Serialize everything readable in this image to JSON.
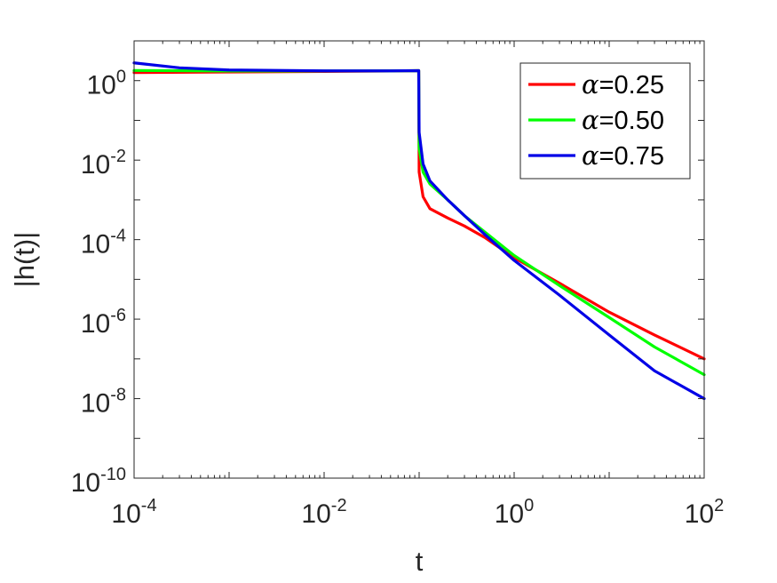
{
  "chart_data": {
    "type": "line",
    "title": "",
    "xlabel": "t",
    "ylabel": "|h(t)|",
    "xscale": "log",
    "yscale": "log",
    "xlim": [
      0.0001,
      100
    ],
    "ylim": [
      1e-10,
      10
    ],
    "grid": false,
    "legend_position": "top-right",
    "xticks": [
      {
        "value": 0.0001,
        "base": "10",
        "exp": "-4"
      },
      {
        "value": 0.01,
        "base": "10",
        "exp": "-2"
      },
      {
        "value": 1,
        "base": "10",
        "exp": "0"
      },
      {
        "value": 100,
        "base": "10",
        "exp": "2"
      }
    ],
    "yticks": [
      {
        "value": 1,
        "base": "10",
        "exp": "0"
      },
      {
        "value": 0.01,
        "base": "10",
        "exp": "-2"
      },
      {
        "value": 0.0001,
        "base": "10",
        "exp": "-4"
      },
      {
        "value": 1e-06,
        "base": "10",
        "exp": "-6"
      },
      {
        "value": 1e-08,
        "base": "10",
        "exp": "-8"
      },
      {
        "value": 1e-10,
        "base": "10",
        "exp": "-10"
      }
    ],
    "series": [
      {
        "name": "α=0.25",
        "legend_symbol": "α",
        "legend_value": "=0.25",
        "color": "#ff0000",
        "points": [
          [
            0.0001,
            1.6
          ],
          [
            0.001,
            1.65
          ],
          [
            0.01,
            1.7
          ],
          [
            0.05,
            1.75
          ],
          [
            0.099,
            1.78
          ],
          [
            0.1,
            0.005
          ],
          [
            0.11,
            0.0012
          ],
          [
            0.13,
            0.0006
          ],
          [
            0.2,
            0.00035
          ],
          [
            0.3,
            0.00022
          ],
          [
            0.5,
            0.00011
          ],
          [
            1,
            3.5e-05
          ],
          [
            3,
            8e-06
          ],
          [
            10,
            1.5e-06
          ],
          [
            30,
            4e-07
          ],
          [
            100,
            1e-07
          ]
        ]
      },
      {
        "name": "α=0.50",
        "legend_symbol": "α",
        "legend_value": "=0.50",
        "color": "#00ff00",
        "points": [
          [
            0.0001,
            1.8
          ],
          [
            0.001,
            1.75
          ],
          [
            0.01,
            1.75
          ],
          [
            0.05,
            1.76
          ],
          [
            0.099,
            1.78
          ],
          [
            0.1,
            0.02
          ],
          [
            0.11,
            0.005
          ],
          [
            0.13,
            0.0025
          ],
          [
            0.2,
            0.001
          ],
          [
            0.3,
            0.0004
          ],
          [
            0.5,
            0.00015
          ],
          [
            1,
            4e-05
          ],
          [
            3,
            7e-06
          ],
          [
            10,
            1.1e-06
          ],
          [
            30,
            2e-07
          ],
          [
            100,
            4e-08
          ]
        ]
      },
      {
        "name": "α=0.75",
        "legend_symbol": "α",
        "legend_value": "=0.75",
        "color": "#0000e6",
        "points": [
          [
            0.0001,
            2.8
          ],
          [
            0.0003,
            2.1
          ],
          [
            0.001,
            1.85
          ],
          [
            0.01,
            1.76
          ],
          [
            0.05,
            1.76
          ],
          [
            0.099,
            1.78
          ],
          [
            0.1,
            0.05
          ],
          [
            0.11,
            0.008
          ],
          [
            0.13,
            0.003
          ],
          [
            0.2,
            0.001
          ],
          [
            0.3,
            0.0004
          ],
          [
            0.5,
            0.00013
          ],
          [
            1,
            3e-05
          ],
          [
            3,
            4e-06
          ],
          [
            10,
            4e-07
          ],
          [
            30,
            5e-08
          ],
          [
            100,
            1e-08
          ]
        ]
      }
    ]
  }
}
